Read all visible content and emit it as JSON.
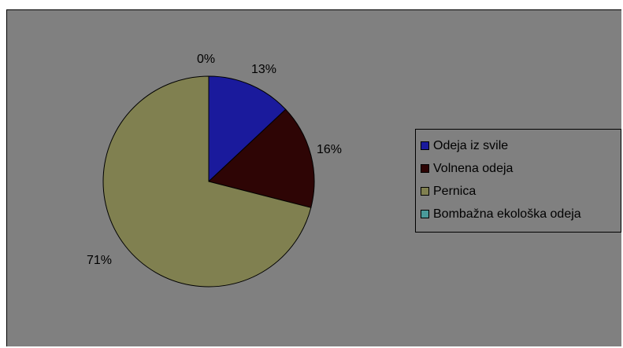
{
  "chart_data": {
    "type": "pie",
    "categories": [
      "Odeja iz svile",
      "Volnena odeja",
      "Pernica",
      "Bombažna ekološka odeja"
    ],
    "values": [
      13,
      16,
      71,
      0
    ],
    "data_labels": [
      "13%",
      "16%",
      "71%",
      "0%"
    ],
    "colors": [
      "#1a1a9c",
      "#2e0505",
      "#808050",
      "#4a9a9a"
    ],
    "legend_position": "right",
    "title": ""
  }
}
